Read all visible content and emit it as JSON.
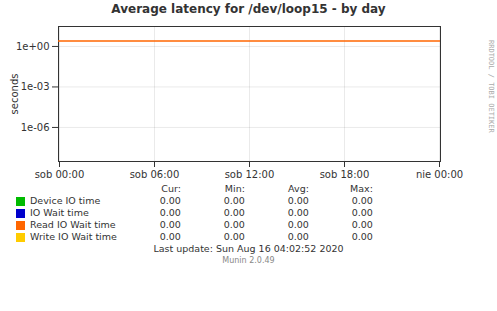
{
  "chart_data": {
    "type": "line",
    "title": "Average latency for /dev/loop15 - by day",
    "y_label": "seconds",
    "categories": [
      "sob 00:00",
      "sob 06:00",
      "sob 12:00",
      "sob 18:00",
      "nie 00:00"
    ],
    "log": "y",
    "ylim": [
      3e-09,
      30.0
    ],
    "yticks": [
      {
        "value": 1e-06,
        "label": "1e-06"
      },
      {
        "value": 0.001,
        "label": "1e-03"
      },
      {
        "value": 1,
        "label": "1e+00"
      }
    ],
    "grid": true,
    "reference_line": {
      "value": 2.5,
      "color": "#ff6600"
    },
    "stat_headers": [
      "Cur:",
      "Min:",
      "Avg:",
      "Max:"
    ],
    "series": [
      {
        "name": "Device IO time",
        "color": "#00bb00",
        "stats": [
          {
            "value": 0.0,
            "label": "0.00"
          },
          {
            "value": 0.0,
            "label": "0.00"
          },
          {
            "value": 0.0,
            "label": "0.00"
          },
          {
            "value": 0.0,
            "label": "0.00"
          }
        ]
      },
      {
        "name": "IO Wait time",
        "color": "#0000cc",
        "stats": [
          {
            "value": 0.0,
            "label": "0.00"
          },
          {
            "value": 0.0,
            "label": "0.00"
          },
          {
            "value": 0.0,
            "label": "0.00"
          },
          {
            "value": 0.0,
            "label": "0.00"
          }
        ]
      },
      {
        "name": "Read IO Wait time",
        "color": "#ff6600",
        "stats": [
          {
            "value": 0.0,
            "label": "0.00"
          },
          {
            "value": 0.0,
            "label": "0.00"
          },
          {
            "value": 0.0,
            "label": "0.00"
          },
          {
            "value": 0.0,
            "label": "0.00"
          }
        ]
      },
      {
        "name": "Write IO Wait time",
        "color": "#ffcc00",
        "stats": [
          {
            "value": 0.0,
            "label": "0.00"
          },
          {
            "value": 0.0,
            "label": "0.00"
          },
          {
            "value": 0.0,
            "label": "0.00"
          },
          {
            "value": 0.0,
            "label": "0.00"
          }
        ]
      }
    ],
    "caption": "Last update: Sun Aug 16 04:02:52 2020",
    "credit": "Munin 2.0.49",
    "side_text": "RRDTOOL / TOBI OETIKER"
  }
}
